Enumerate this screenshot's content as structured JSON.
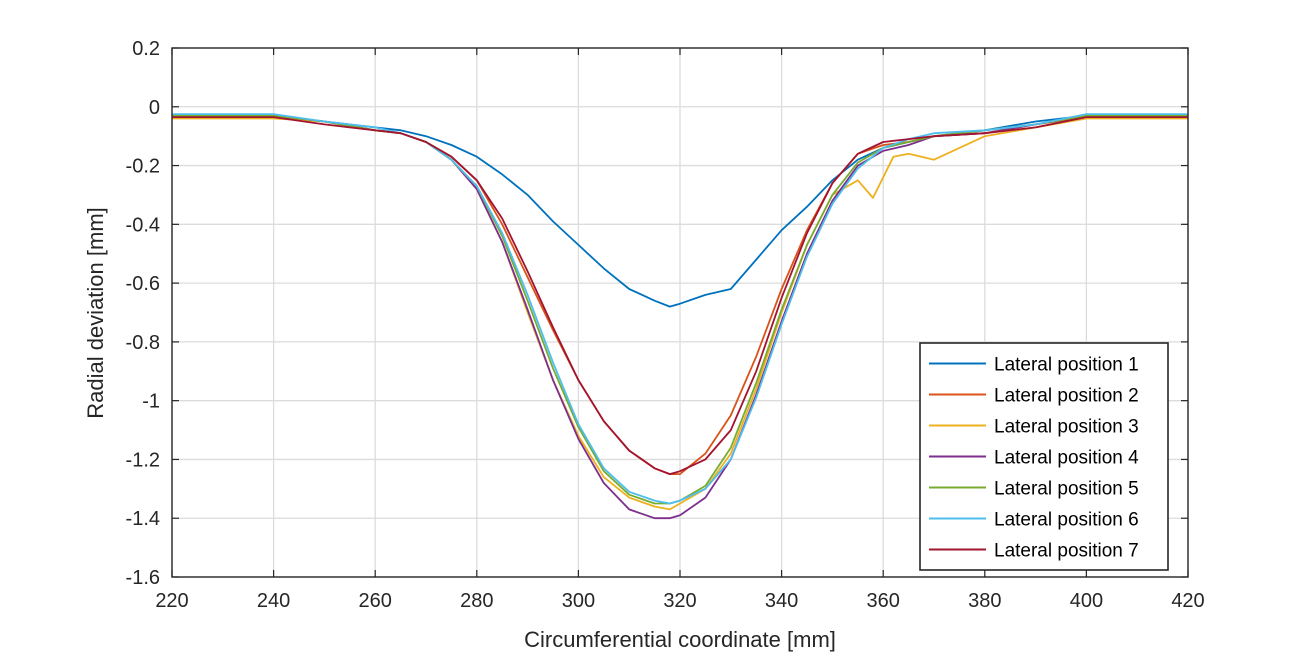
{
  "chart_data": {
    "type": "line",
    "title": "",
    "xlabel": "Circumferential coordinate [mm]",
    "ylabel": "Radial deviation [mm]",
    "xlim": [
      220,
      420
    ],
    "ylim": [
      -1.6,
      0.2
    ],
    "x_ticks": [
      220,
      240,
      260,
      280,
      300,
      320,
      340,
      360,
      380,
      400,
      420
    ],
    "y_ticks": [
      -1.6,
      -1.4,
      -1.2,
      -1,
      -0.8,
      -0.6,
      -0.4,
      -0.2,
      0,
      0.2
    ],
    "x_tick_labels": [
      "220",
      "240",
      "260",
      "280",
      "300",
      "320",
      "340",
      "360",
      "380",
      "400",
      "420"
    ],
    "y_tick_labels": [
      "-1.6",
      "-1.4",
      "-1.2",
      "-1",
      "-0.8",
      "-0.6",
      "-0.4",
      "-0.2",
      "0",
      "0.2"
    ],
    "grid": true,
    "legend_position": "bottom-right",
    "series": [
      {
        "name": "Lateral position 1",
        "color": "#0072BD",
        "x": [
          220,
          240,
          250,
          260,
          265,
          270,
          275,
          280,
          285,
          290,
          295,
          300,
          305,
          310,
          315,
          318,
          320,
          325,
          330,
          335,
          340,
          345,
          350,
          355,
          360,
          365,
          370,
          380,
          390,
          400,
          420
        ],
        "y": [
          -0.03,
          -0.03,
          -0.05,
          -0.07,
          -0.08,
          -0.1,
          -0.13,
          -0.17,
          -0.23,
          -0.3,
          -0.39,
          -0.47,
          -0.55,
          -0.62,
          -0.66,
          -0.68,
          -0.67,
          -0.64,
          -0.62,
          -0.52,
          -0.42,
          -0.34,
          -0.25,
          -0.18,
          -0.14,
          -0.12,
          -0.1,
          -0.08,
          -0.05,
          -0.03,
          -0.03
        ]
      },
      {
        "name": "Lateral position 2",
        "color": "#D95319",
        "x": [
          220,
          240,
          250,
          260,
          265,
          270,
          275,
          280,
          285,
          290,
          295,
          300,
          305,
          310,
          315,
          318,
          320,
          325,
          330,
          335,
          340,
          345,
          350,
          355,
          360,
          365,
          370,
          380,
          390,
          400,
          420
        ],
        "y": [
          -0.035,
          -0.035,
          -0.05,
          -0.08,
          -0.09,
          -0.12,
          -0.17,
          -0.25,
          -0.4,
          -0.58,
          -0.76,
          -0.93,
          -1.07,
          -1.17,
          -1.23,
          -1.25,
          -1.25,
          -1.18,
          -1.05,
          -0.85,
          -0.62,
          -0.42,
          -0.26,
          -0.16,
          -0.13,
          -0.12,
          -0.1,
          -0.09,
          -0.06,
          -0.035,
          -0.035
        ]
      },
      {
        "name": "Lateral position 3",
        "color": "#EDB120",
        "x": [
          220,
          240,
          250,
          260,
          265,
          270,
          275,
          280,
          285,
          290,
          295,
          300,
          305,
          310,
          315,
          318,
          320,
          325,
          330,
          335,
          340,
          345,
          350,
          355,
          358,
          362,
          365,
          370,
          380,
          390,
          400,
          420
        ],
        "y": [
          -0.04,
          -0.04,
          -0.05,
          -0.08,
          -0.09,
          -0.12,
          -0.18,
          -0.28,
          -0.46,
          -0.7,
          -0.93,
          -1.12,
          -1.26,
          -1.33,
          -1.36,
          -1.37,
          -1.35,
          -1.3,
          -1.18,
          -0.96,
          -0.7,
          -0.47,
          -0.3,
          -0.25,
          -0.31,
          -0.17,
          -0.16,
          -0.18,
          -0.1,
          -0.07,
          -0.04,
          -0.04
        ]
      },
      {
        "name": "Lateral position 4",
        "color": "#7E2F8E",
        "x": [
          220,
          240,
          250,
          260,
          265,
          270,
          275,
          280,
          285,
          290,
          295,
          300,
          305,
          310,
          315,
          318,
          320,
          325,
          330,
          335,
          340,
          345,
          350,
          355,
          360,
          365,
          370,
          380,
          390,
          400,
          420
        ],
        "y": [
          -0.03,
          -0.03,
          -0.05,
          -0.08,
          -0.09,
          -0.12,
          -0.18,
          -0.28,
          -0.46,
          -0.69,
          -0.93,
          -1.13,
          -1.28,
          -1.37,
          -1.4,
          -1.4,
          -1.39,
          -1.33,
          -1.2,
          -0.98,
          -0.73,
          -0.5,
          -0.32,
          -0.2,
          -0.15,
          -0.13,
          -0.1,
          -0.09,
          -0.06,
          -0.03,
          -0.03
        ]
      },
      {
        "name": "Lateral position 5",
        "color": "#77AC30",
        "x": [
          220,
          240,
          250,
          260,
          265,
          270,
          275,
          280,
          285,
          290,
          295,
          300,
          305,
          310,
          315,
          318,
          320,
          325,
          330,
          335,
          340,
          345,
          350,
          355,
          360,
          365,
          370,
          380,
          390,
          400,
          420
        ],
        "y": [
          -0.03,
          -0.03,
          -0.05,
          -0.08,
          -0.09,
          -0.12,
          -0.18,
          -0.27,
          -0.44,
          -0.66,
          -0.89,
          -1.09,
          -1.24,
          -1.32,
          -1.35,
          -1.35,
          -1.34,
          -1.29,
          -1.16,
          -0.94,
          -0.69,
          -0.47,
          -0.3,
          -0.19,
          -0.14,
          -0.12,
          -0.1,
          -0.08,
          -0.06,
          -0.03,
          -0.03
        ]
      },
      {
        "name": "Lateral position 6",
        "color": "#4DBEEE",
        "x": [
          220,
          240,
          250,
          260,
          265,
          270,
          275,
          280,
          285,
          290,
          295,
          300,
          305,
          310,
          315,
          318,
          320,
          325,
          330,
          335,
          340,
          345,
          350,
          355,
          360,
          365,
          370,
          380,
          390,
          400,
          420
        ],
        "y": [
          -0.025,
          -0.025,
          -0.05,
          -0.07,
          -0.09,
          -0.12,
          -0.18,
          -0.27,
          -0.43,
          -0.64,
          -0.87,
          -1.08,
          -1.23,
          -1.31,
          -1.34,
          -1.35,
          -1.34,
          -1.3,
          -1.2,
          -0.99,
          -0.74,
          -0.51,
          -0.33,
          -0.21,
          -0.14,
          -0.11,
          -0.09,
          -0.08,
          -0.06,
          -0.025,
          -0.025
        ]
      },
      {
        "name": "Lateral position 7",
        "color": "#A2142F",
        "x": [
          220,
          240,
          250,
          260,
          265,
          270,
          275,
          280,
          285,
          290,
          295,
          300,
          305,
          310,
          315,
          318,
          320,
          325,
          330,
          335,
          340,
          345,
          350,
          355,
          360,
          365,
          370,
          380,
          390,
          400,
          420
        ],
        "y": [
          -0.035,
          -0.035,
          -0.06,
          -0.08,
          -0.09,
          -0.12,
          -0.17,
          -0.25,
          -0.38,
          -0.56,
          -0.75,
          -0.93,
          -1.07,
          -1.17,
          -1.23,
          -1.25,
          -1.24,
          -1.2,
          -1.1,
          -0.9,
          -0.65,
          -0.43,
          -0.26,
          -0.16,
          -0.12,
          -0.11,
          -0.1,
          -0.09,
          -0.07,
          -0.035,
          -0.035
        ]
      }
    ]
  }
}
